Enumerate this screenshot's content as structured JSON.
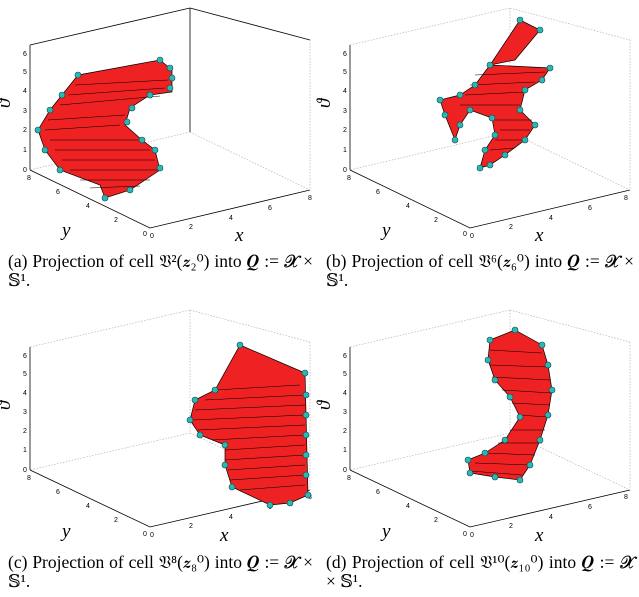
{
  "figure": {
    "panels": [
      {
        "id": "a",
        "caption": "(a) Projection of cell 𝔙²(𝒛₂⁰) into 𝑸 := 𝓧 × 𝕊¹."
      },
      {
        "id": "b",
        "caption": "(b) Projection of cell 𝔙⁶(𝒛₆⁰) into 𝑸 := 𝓧 × 𝕊¹."
      },
      {
        "id": "c",
        "caption": "(c) Projection of cell 𝔙⁸(𝒛₈⁰) into 𝑸 := 𝓧 × 𝕊¹."
      },
      {
        "id": "d",
        "caption": "(d) Projection of cell 𝔙¹⁰(𝒛₁₀⁰) into 𝑸 := 𝓧 × 𝕊¹."
      }
    ],
    "axes": {
      "x_label": "x",
      "y_label": "y",
      "z_label": "ϑ",
      "x_ticks": [
        "0",
        "2",
        "4",
        "6",
        "8"
      ],
      "y_ticks": [
        "0",
        "2",
        "4",
        "6",
        "8"
      ],
      "z_ticks": [
        "0",
        "1",
        "2",
        "3",
        "4",
        "5",
        "6"
      ]
    },
    "colors": {
      "surface": "#ee2222",
      "vertex": "#2ab7b5",
      "edge": "#000000"
    }
  }
}
